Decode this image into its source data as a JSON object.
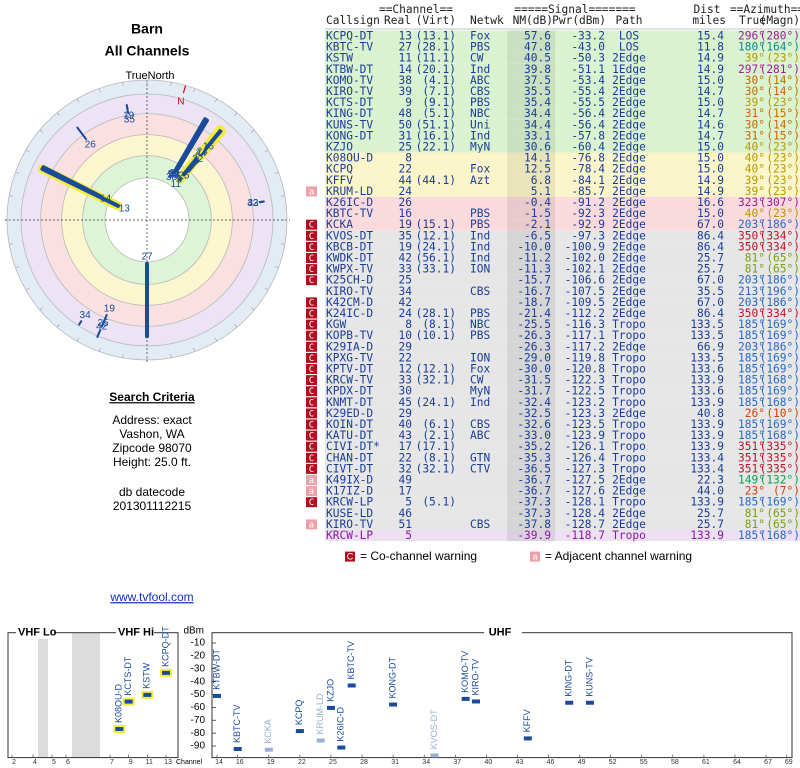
{
  "header": {
    "title": "Barn",
    "subtitle": "All Channels"
  },
  "radar": {
    "north_label": "TrueNorth",
    "magnetic_label": "N"
  },
  "search": {
    "title": "Search Criteria",
    "lines": [
      "Address: exact",
      "Vashon, WA",
      "Zipcode 98070",
      "Height: 25.0 ft."
    ],
    "datecode_label": "db datecode",
    "datecode": "201301112215"
  },
  "link": "www.tvfool.com",
  "table": {
    "group_headers": [
      "==Channel==",
      "=====Signal=======",
      "Dist",
      "==Azimuth=="
    ],
    "columns": [
      "Callsign",
      "Real",
      "(Virt)",
      "Netwk",
      "NM(dB)",
      "Pwr(dBm)",
      "Path",
      "miles",
      "True",
      "(Magn)"
    ],
    "text_color": "#1b3d99",
    "rows": [
      {
        "callsign": "KCPQ-DT",
        "real": "13",
        "virt": "(13.1)",
        "netwk": "Fox",
        "nm": "57.6",
        "pwr": "-33.2",
        "path": "LOS",
        "dist": "15.4",
        "true": "296°",
        "magn": "(280°)",
        "az_color": "#a0209a",
        "bg": "#d9f2d0"
      },
      {
        "callsign": "KBTC-TV",
        "real": "27",
        "virt": "(28.1)",
        "netwk": "PBS",
        "nm": "47.8",
        "pwr": "-43.0",
        "path": "LOS",
        "dist": "11.8",
        "true": "180°",
        "magn": "(164°)",
        "az_color": "#108a8a",
        "bg": "#d9f2d0"
      },
      {
        "callsign": "KSTW",
        "real": "11",
        "virt": "(11.1)",
        "netwk": "CW",
        "nm": "40.5",
        "pwr": "-50.3",
        "path": "2Edge",
        "dist": "14.9",
        "true": "39°",
        "magn": "(23°)",
        "az_color": "#b89a00",
        "bg": "#d9f2d0"
      },
      {
        "callsign": "KTBW-DT",
        "real": "14",
        "virt": "(20.1)",
        "netwk": "Ind",
        "nm": "39.8",
        "pwr": "-51.1",
        "path": "1Edge",
        "dist": "14.9",
        "true": "297°",
        "magn": "(281°)",
        "az_color": "#a0209a",
        "bg": "#d9f2d0"
      },
      {
        "callsign": "KOMO-TV",
        "real": "38",
        "virt": "(4.1)",
        "netwk": "ABC",
        "nm": "37.5",
        "pwr": "-53.4",
        "path": "2Edge",
        "dist": "15.0",
        "true": "30°",
        "magn": "(14°)",
        "az_color": "#c86a00",
        "bg": "#d9f2d0"
      },
      {
        "callsign": "KIRO-TV",
        "real": "39",
        "virt": "(7.1)",
        "netwk": "CBS",
        "nm": "35.5",
        "pwr": "-55.4",
        "path": "2Edge",
        "dist": "14.7",
        "true": "30°",
        "magn": "(14°)",
        "az_color": "#c86a00",
        "bg": "#d9f2d0"
      },
      {
        "callsign": "KCTS-DT",
        "real": "9",
        "virt": "(9.1)",
        "netwk": "PBS",
        "nm": "35.4",
        "pwr": "-55.5",
        "path": "2Edge",
        "dist": "15.0",
        "true": "39°",
        "magn": "(23°)",
        "az_color": "#b89a00",
        "bg": "#d9f2d0"
      },
      {
        "callsign": "KING-DT",
        "real": "48",
        "virt": "(5.1)",
        "netwk": "NBC",
        "nm": "34.4",
        "pwr": "-56.4",
        "path": "2Edge",
        "dist": "14.7",
        "true": "31°",
        "magn": "(15°)",
        "az_color": "#c86a00",
        "bg": "#d9f2d0"
      },
      {
        "callsign": "KUNS-TV",
        "real": "50",
        "virt": "(51.1)",
        "netwk": "Uni",
        "nm": "34.4",
        "pwr": "-56.4",
        "path": "2Edge",
        "dist": "14.6",
        "true": "30°",
        "magn": "(14°)",
        "az_color": "#c86a00",
        "bg": "#d9f2d0"
      },
      {
        "callsign": "KONG-DT",
        "real": "31",
        "virt": "(16.1)",
        "netwk": "Ind",
        "nm": "33.1",
        "pwr": "-57.8",
        "path": "2Edge",
        "dist": "14.7",
        "true": "31°",
        "magn": "(15°)",
        "az_color": "#c86a00",
        "bg": "#d9f2d0"
      },
      {
        "callsign": "KZJO",
        "real": "25",
        "virt": "(22.1)",
        "netwk": "MyN",
        "nm": "30.6",
        "pwr": "-60.4",
        "path": "2Edge",
        "dist": "15.0",
        "true": "40°",
        "magn": "(23°)",
        "az_color": "#b89a00",
        "bg": "#d9f2d0"
      },
      {
        "callsign": "K08OU-D",
        "real": "8",
        "nm": "14.1",
        "pwr": "-76.8",
        "path": "2Edge",
        "dist": "15.0",
        "true": "40°",
        "magn": "(23°)",
        "az_color": "#b89a00",
        "bg": "#fbf6c9"
      },
      {
        "callsign": "KCPQ",
        "real": "22",
        "netwk": "Fox",
        "nm": "12.5",
        "pwr": "-78.4",
        "path": "2Edge",
        "dist": "15.0",
        "true": "40°",
        "magn": "(23°)",
        "az_color": "#b89a00",
        "bg": "#fbf6c9"
      },
      {
        "callsign": "KFFV",
        "real": "44",
        "virt": "(44.1)",
        "netwk": "Azt",
        "nm": "6.8",
        "pwr": "-84.1",
        "path": "2Edge",
        "dist": "14.9",
        "true": "39°",
        "magn": "(23°)",
        "az_color": "#b89a00",
        "bg": "#fbf6c9"
      },
      {
        "callsign": "KRUM-LD",
        "real": "24",
        "nm": "5.1",
        "pwr": "-85.7",
        "path": "2Edge",
        "dist": "14.9",
        "true": "39°",
        "magn": "(23°)",
        "az_color": "#b89a00",
        "bg": "#fbf6c9",
        "warn": "a"
      },
      {
        "callsign": "K26IC-D",
        "real": "26",
        "nm": "-0.4",
        "pwr": "-91.2",
        "path": "2Edge",
        "dist": "16.6",
        "true": "323°",
        "magn": "(307°)",
        "az_color": "#a0209a",
        "bg": "#fadadd"
      },
      {
        "callsign": "KBTC-TV",
        "real": "16",
        "netwk": "PBS",
        "nm": "-1.5",
        "pwr": "-92.3",
        "path": "2Edge",
        "dist": "15.0",
        "true": "40°",
        "magn": "(23°)",
        "az_color": "#b89a00",
        "bg": "#fadadd"
      },
      {
        "callsign": "KCKA",
        "real": "19",
        "virt": "(15.1)",
        "netwk": "PBS",
        "nm": "-2.1",
        "pwr": "-92.9",
        "path": "2Edge",
        "dist": "67.0",
        "true": "203°",
        "magn": "(186°)",
        "az_color": "#2a6ac8",
        "bg": "#fadadd",
        "warn": "C"
      },
      {
        "callsign": "KVOS-DT",
        "real": "35",
        "virt": "(12.1)",
        "netwk": "Ind",
        "nm": "-6.5",
        "pwr": "-97.3",
        "path": "2Edge",
        "dist": "86.4",
        "true": "350°",
        "magn": "(334°)",
        "az_color": "#c8102e",
        "bg": "#e6e6e6",
        "warn": "C"
      },
      {
        "callsign": "KBCB-DT",
        "real": "19",
        "virt": "(24.1)",
        "netwk": "Ind",
        "nm": "-10.0",
        "pwr": "-100.9",
        "path": "2Edge",
        "dist": "86.4",
        "true": "350°",
        "magn": "(334°)",
        "az_color": "#c8102e",
        "bg": "#e6e6e6",
        "warn": "C"
      },
      {
        "callsign": "KWDK-DT",
        "real": "42",
        "virt": "(56.1)",
        "netwk": "Ind",
        "nm": "-11.2",
        "pwr": "-102.0",
        "path": "2Edge",
        "dist": "25.7",
        "true": "81°",
        "magn": "(65°)",
        "az_color": "#7aa010",
        "bg": "#e6e6e6",
        "warn": "C"
      },
      {
        "callsign": "KWPX-TV",
        "real": "33",
        "virt": "(33.1)",
        "netwk": "ION",
        "nm": "-11.3",
        "pwr": "-102.1",
        "path": "2Edge",
        "dist": "25.7",
        "true": "81°",
        "magn": "(65°)",
        "az_color": "#7aa010",
        "bg": "#e6e6e6",
        "warn": "C"
      },
      {
        "callsign": "K25CH-D",
        "real": "25",
        "nm": "-15.7",
        "pwr": "-106.6",
        "path": "2Edge",
        "dist": "67.0",
        "true": "203°",
        "magn": "(186°)",
        "az_color": "#2a6ac8",
        "bg": "#e6e6e6",
        "warn": "C"
      },
      {
        "callsign": "KIRO-TV",
        "real": "34",
        "netwk": "CBS",
        "nm": "-16.7",
        "pwr": "-107.5",
        "path": "2Edge",
        "dist": "35.5",
        "true": "213°",
        "magn": "(196°)",
        "az_color": "#2a6ac8",
        "bg": "#e6e6e6"
      },
      {
        "callsign": "K42CM-D",
        "real": "42",
        "nm": "-18.7",
        "pwr": "-109.5",
        "path": "2Edge",
        "dist": "67.0",
        "true": "203°",
        "magn": "(186°)",
        "az_color": "#2a6ac8",
        "bg": "#e6e6e6",
        "warn": "C"
      },
      {
        "callsign": "K24IC-D",
        "real": "24",
        "virt": "(28.1)",
        "netwk": "PBS",
        "nm": "-21.4",
        "pwr": "-112.2",
        "path": "2Edge",
        "dist": "86.4",
        "true": "350°",
        "magn": "(334°)",
        "az_color": "#c8102e",
        "bg": "#e6e6e6",
        "warn": "C"
      },
      {
        "callsign": "KGW",
        "real": "8",
        "virt": "(8.1)",
        "netwk": "NBC",
        "nm": "-25.5",
        "pwr": "-116.3",
        "path": "Tropo",
        "dist": "133.5",
        "true": "185°",
        "magn": "(169°)",
        "az_color": "#2a6ac8",
        "bg": "#e6e6e6",
        "warn": "C"
      },
      {
        "callsign": "KOPB-TV",
        "real": "10",
        "virt": "(10.1)",
        "netwk": "PBS",
        "nm": "-26.3",
        "pwr": "-117.1",
        "path": "Tropo",
        "dist": "133.5",
        "true": "185°",
        "magn": "(169°)",
        "az_color": "#2a6ac8",
        "bg": "#e6e6e6",
        "warn": "C"
      },
      {
        "callsign": "K29IA-D",
        "real": "29",
        "nm": "-26.3",
        "pwr": "-117.2",
        "path": "2Edge",
        "dist": "66.9",
        "true": "203°",
        "magn": "(186°)",
        "az_color": "#2a6ac8",
        "bg": "#e6e6e6",
        "warn": "C"
      },
      {
        "callsign": "KPXG-TV",
        "real": "22",
        "netwk": "ION",
        "nm": "-29.0",
        "pwr": "-119.8",
        "path": "Tropo",
        "dist": "133.5",
        "true": "185°",
        "magn": "(169°)",
        "az_color": "#2a6ac8",
        "bg": "#e6e6e6",
        "warn": "C"
      },
      {
        "callsign": "KPTV-DT",
        "real": "12",
        "virt": "(12.1)",
        "netwk": "Fox",
        "nm": "-30.0",
        "pwr": "-120.8",
        "path": "Tropo",
        "dist": "133.6",
        "true": "185°",
        "magn": "(169°)",
        "az_color": "#2a6ac8",
        "bg": "#e6e6e6",
        "warn": "C"
      },
      {
        "callsign": "KRCW-TV",
        "real": "33",
        "virt": "(32.1)",
        "netwk": "CW",
        "nm": "-31.5",
        "pwr": "-122.3",
        "path": "Tropo",
        "dist": "133.9",
        "true": "185°",
        "magn": "(168°)",
        "az_color": "#2a6ac8",
        "bg": "#e6e6e6",
        "warn": "C"
      },
      {
        "callsign": "KPDX-DT",
        "real": "30",
        "netwk": "MyN",
        "nm": "-31.7",
        "pwr": "-122.5",
        "path": "Tropo",
        "dist": "133.6",
        "true": "185°",
        "magn": "(169°)",
        "az_color": "#2a6ac8",
        "bg": "#e6e6e6",
        "warn": "C"
      },
      {
        "callsign": "KNMT-DT",
        "real": "45",
        "virt": "(24.1)",
        "netwk": "Ind",
        "nm": "-32.4",
        "pwr": "-123.2",
        "path": "Tropo",
        "dist": "133.9",
        "true": "185°",
        "magn": "(168°)",
        "az_color": "#2a6ac8",
        "bg": "#e6e6e6",
        "warn": "C"
      },
      {
        "callsign": "K29ED-D",
        "real": "29",
        "nm": "-32.5",
        "pwr": "-123.3",
        "path": "2Edge",
        "dist": "40.8",
        "true": "26°",
        "magn": "(10°)",
        "az_color": "#d84010",
        "bg": "#e6e6e6",
        "warn": "C"
      },
      {
        "callsign": "KOIN-DT",
        "real": "40",
        "virt": "(6.1)",
        "netwk": "CBS",
        "nm": "-32.6",
        "pwr": "-123.5",
        "path": "Tropo",
        "dist": "133.9",
        "true": "185°",
        "magn": "(169°)",
        "az_color": "#2a6ac8",
        "bg": "#e6e6e6",
        "warn": "C"
      },
      {
        "callsign": "KATU-DT",
        "real": "43",
        "virt": "(2.1)",
        "netwk": "ABC",
        "nm": "-33.0",
        "pwr": "-123.9",
        "path": "Tropo",
        "dist": "133.9",
        "true": "185°",
        "magn": "(168°)",
        "az_color": "#2a6ac8",
        "bg": "#e6e6e6",
        "warn": "C"
      },
      {
        "callsign": "CIVI-DT*",
        "real": "17",
        "virt": "(17.1)",
        "nm": "-35.2",
        "pwr": "-126.1",
        "path": "Tropo",
        "dist": "133.9",
        "true": "351°",
        "magn": "(335°)",
        "az_color": "#c8102e",
        "bg": "#e6e6e6",
        "warn": "C"
      },
      {
        "callsign": "CHAN-DT",
        "real": "22",
        "virt": "(8.1)",
        "netwk": "GTN",
        "nm": "-35.3",
        "pwr": "-126.4",
        "path": "Tropo",
        "dist": "133.4",
        "true": "351°",
        "magn": "(335°)",
        "az_color": "#c8102e",
        "bg": "#e6e6e6",
        "warn": "C"
      },
      {
        "callsign": "CIVT-DT",
        "real": "32",
        "virt": "(32.1)",
        "netwk": "CTV",
        "nm": "-36.5",
        "pwr": "-127.3",
        "path": "Tropo",
        "dist": "133.4",
        "true": "351°",
        "magn": "(335°)",
        "az_color": "#c8102e",
        "bg": "#e6e6e6",
        "warn": "C"
      },
      {
        "callsign": "K49IX-D",
        "real": "49",
        "nm": "-36.7",
        "pwr": "-127.5",
        "path": "2Edge",
        "dist": "22.3",
        "true": "149°",
        "magn": "(132°)",
        "az_color": "#10a050",
        "bg": "#e6e6e6",
        "warn": "a"
      },
      {
        "callsign": "K17IZ-D",
        "real": "17",
        "nm": "-36.7",
        "pwr": "-127.6",
        "path": "2Edge",
        "dist": "44.0",
        "true": "23°",
        "magn": "(7°)",
        "az_color": "#d84010",
        "bg": "#e6e6e6",
        "warn": "a"
      },
      {
        "callsign": "KRCW-LP",
        "real": "5",
        "virt": "(5.1)",
        "nm": "-37.3",
        "pwr": "-128.1",
        "path": "Tropo",
        "dist": "133.9",
        "true": "185°",
        "magn": "(169°)",
        "az_color": "#2a6ac8",
        "bg": "#e6e6e6",
        "warn": "C"
      },
      {
        "callsign": "KUSE-LD",
        "real": "46",
        "nm": "-37.3",
        "pwr": "-128.4",
        "path": "2Edge",
        "dist": "25.7",
        "true": "81°",
        "magn": "(65°)",
        "az_color": "#7aa010",
        "bg": "#e6e6e6"
      },
      {
        "callsign": "KIRO-TV",
        "real": "51",
        "netwk": "CBS",
        "nm": "-37.8",
        "pwr": "-128.7",
        "path": "2Edge",
        "dist": "25.7",
        "true": "81°",
        "magn": "(65°)",
        "az_color": "#7aa010",
        "bg": "#e6e6e6",
        "warn": "a"
      },
      {
        "callsign": "KRCW-LP",
        "real": "5",
        "nm": "-39.9",
        "pwr": "-118.7",
        "path": "Tropo",
        "dist": "133.9",
        "true": "185°",
        "magn": "(168°)",
        "az_color": "#2a6ac8",
        "bg": "#ece0f2",
        "text_color": "#8a1aa0"
      }
    ]
  },
  "legend": [
    {
      "mark": "C",
      "text": "= Co-channel warning",
      "color": "#b01020"
    },
    {
      "mark": "a",
      "text": "= Adjacent channel warning",
      "color": "#f0a0a8"
    }
  ],
  "chart_data": {
    "type": "spectrum",
    "panels": [
      {
        "label": "VHF Lo"
      },
      {
        "label": "VHF Hi"
      },
      {
        "label": "UHF"
      }
    ],
    "y_label": "dBm",
    "x_label": "Channel",
    "ylim": [
      -2,
      -99
    ],
    "yticks": [
      -10,
      -20,
      -30,
      -40,
      -50,
      -60,
      -70,
      -80,
      -90
    ],
    "xticks": [
      2,
      4,
      5,
      6,
      7,
      9,
      11,
      13,
      14,
      16,
      19,
      22,
      25,
      28,
      31,
      34,
      37,
      40,
      43,
      46,
      49,
      52,
      55,
      58,
      61,
      64,
      67,
      69
    ],
    "color": "#1a4a9a",
    "faded_color": "#9ab0d4",
    "highlight_color": "#f4ec3c"
  }
}
